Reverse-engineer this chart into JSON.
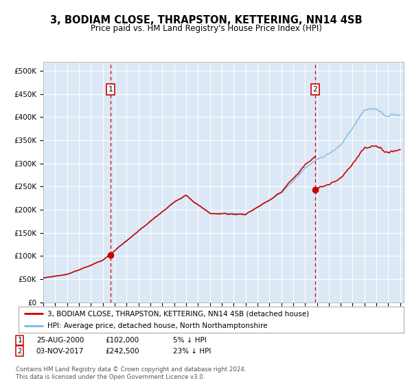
{
  "title": "3, BODIAM CLOSE, THRAPSTON, KETTERING, NN14 4SB",
  "subtitle": "Price paid vs. HM Land Registry's House Price Index (HPI)",
  "ylim": [
    0,
    520000
  ],
  "yticks": [
    0,
    50000,
    100000,
    150000,
    200000,
    250000,
    300000,
    350000,
    400000,
    450000,
    500000
  ],
  "ytick_labels": [
    "£0",
    "£50K",
    "£100K",
    "£150K",
    "£200K",
    "£250K",
    "£300K",
    "£350K",
    "£400K",
    "£450K",
    "£500K"
  ],
  "plot_bg": "#dce8f5",
  "hpi_color": "#7ab8e8",
  "price_color": "#cc0000",
  "marker1_year": 2000.65,
  "marker1_price": 102000,
  "marker2_year": 2017.84,
  "marker2_price": 242500,
  "legend_label_red": "3, BODIAM CLOSE, THRAPSTON, KETTERING, NN14 4SB (detached house)",
  "legend_label_blue": "HPI: Average price, detached house, North Northamptonshire",
  "footnote3": "Contains HM Land Registry data © Crown copyright and database right 2024.",
  "footnote4": "This data is licensed under the Open Government Licence v3.0.",
  "x_start_year": 1995,
  "x_end_year": 2025,
  "note1_date": "25-AUG-2000",
  "note1_price": "£102,000",
  "note1_hpi": "5% ↓ HPI",
  "note2_date": "03-NOV-2017",
  "note2_price": "£242,500",
  "note2_hpi": "23% ↓ HPI"
}
